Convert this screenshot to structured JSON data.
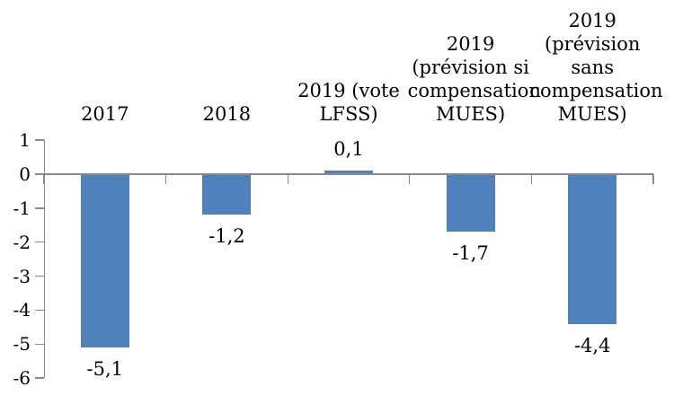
{
  "chart_data": {
    "type": "bar",
    "title": "",
    "xlabel": "",
    "ylabel": "",
    "categories": [
      "2017",
      "2018",
      "2019 (vote\nLFSS)",
      "2019\n(prévision si\ncompensation\nMUES)",
      "2019\n(prévision\nsans\ncompensation\nMUES)"
    ],
    "values": [
      -5.1,
      -1.2,
      0.1,
      -1.7,
      -4.4
    ],
    "value_labels": [
      "-5,1",
      "-1,2",
      "0,1",
      "-1,7",
      "-4,4"
    ],
    "ytick_labels": [
      "1",
      "0",
      "-1",
      "-2",
      "-3",
      "-4",
      "-5",
      "-6"
    ],
    "yticks": [
      1,
      0,
      -1,
      -2,
      -3,
      -4,
      -5,
      -6
    ],
    "ylim": [
      -6,
      1
    ],
    "grid": false,
    "legend": "none",
    "category_labels_position": "above-plot",
    "bar_color": "#4F81BD",
    "axis_color": "#898989",
    "text_color": "#000000"
  }
}
